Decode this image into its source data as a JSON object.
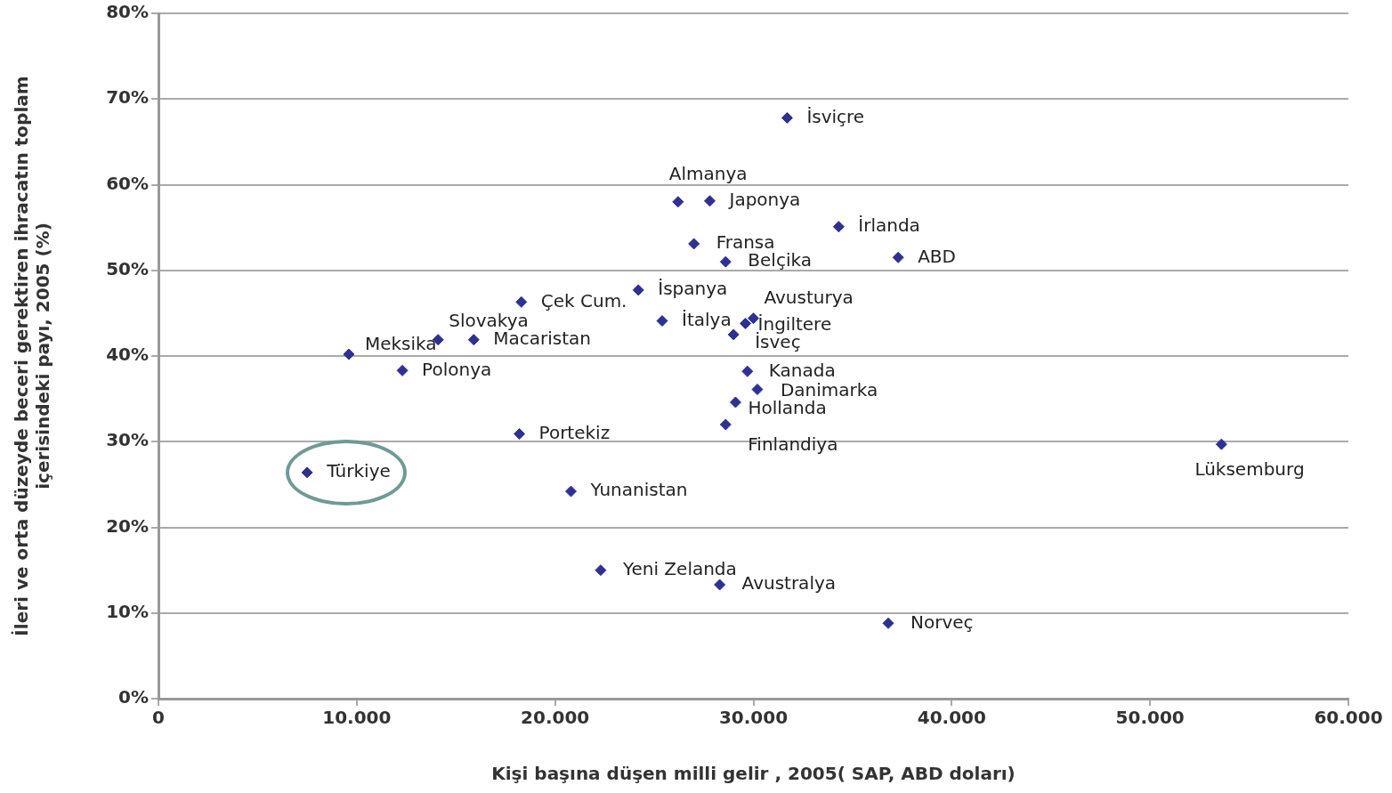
{
  "chart_data": {
    "type": "scatter",
    "xlabel": "Kişi başına düşen milli gelir , 2005( SAP, ABD doları)",
    "ylabel": "İleri ve orta düzeyde beceri gerektiren ihracatın toplam\niçerisindeki payı, 2005 (%)",
    "series": [
      {
        "color": "#2e3192",
        "x": [
          31700,
          26200,
          27800,
          34300,
          37300,
          27000,
          28600,
          24200,
          18300,
          14100,
          15900,
          9600,
          12300,
          25400,
          30000,
          29600,
          29000,
          29700,
          30200,
          29100,
          28600,
          18200,
          7500,
          20800,
          22300,
          28300,
          36800,
          53600
        ],
        "values": [
          67.8,
          58.0,
          58.1,
          55.1,
          51.5,
          53.1,
          51.0,
          47.7,
          46.3,
          41.9,
          41.9,
          40.2,
          38.3,
          44.1,
          44.4,
          43.8,
          42.5,
          38.2,
          36.1,
          34.6,
          32.0,
          30.9,
          26.4,
          24.2,
          15.0,
          13.3,
          8.8,
          29.7
        ]
      }
    ],
    "annotations": [
      {
        "text": "İsviçre",
        "x": 31700,
        "y": 67.8
      },
      {
        "text": "Almanya",
        "x": 26200,
        "y": 58.0
      },
      {
        "text": "Japonya",
        "x": 27800,
        "y": 58.1
      },
      {
        "text": "İrlanda",
        "x": 34300,
        "y": 55.1
      },
      {
        "text": "ABD",
        "x": 37300,
        "y": 51.5
      },
      {
        "text": "Fransa",
        "x": 27000,
        "y": 53.1
      },
      {
        "text": "Belçika",
        "x": 28600,
        "y": 51.0
      },
      {
        "text": "İspanya",
        "x": 24200,
        "y": 47.7
      },
      {
        "text": "Çek Cum.",
        "x": 18300,
        "y": 46.3
      },
      {
        "text": "Slovakya",
        "x": 14100,
        "y": 41.9
      },
      {
        "text": "Macaristan",
        "x": 15900,
        "y": 41.9
      },
      {
        "text": "Meksika",
        "x": 9600,
        "y": 40.2
      },
      {
        "text": "Polonya",
        "x": 12300,
        "y": 38.3
      },
      {
        "text": "İtalya",
        "x": 25400,
        "y": 44.1
      },
      {
        "text": "Avusturya",
        "x": 30000,
        "y": 44.4
      },
      {
        "text": "İngiltere",
        "x": 29600,
        "y": 43.8
      },
      {
        "text": "İsveç",
        "x": 29000,
        "y": 42.5
      },
      {
        "text": "Kanada",
        "x": 29700,
        "y": 38.2
      },
      {
        "text": "Danimarka",
        "x": 30200,
        "y": 36.1
      },
      {
        "text": "Hollanda",
        "x": 29100,
        "y": 34.6
      },
      {
        "text": "Finlandiya",
        "x": 28600,
        "y": 32.0
      },
      {
        "text": "Portekiz",
        "x": 18200,
        "y": 30.9
      },
      {
        "text": "Türkiye",
        "x": 7500,
        "y": 26.4
      },
      {
        "text": "Yunanistan",
        "x": 20800,
        "y": 24.2
      },
      {
        "text": "Yeni Zelanda",
        "x": 22300,
        "y": 15.0
      },
      {
        "text": "Avustralya",
        "x": 28300,
        "y": 13.3
      },
      {
        "text": "Norveç",
        "x": 36800,
        "y": 8.8
      },
      {
        "text": "Lüksemburg",
        "x": 53600,
        "y": 29.7
      }
    ],
    "xlim": [
      0,
      60000
    ],
    "xticks": [
      0,
      {
        "value": 10000,
        "label": "10.000"
      },
      {
        "value": 20000,
        "label": "20.000"
      },
      {
        "value": 30000,
        "label": "30.000"
      },
      {
        "value": 40000,
        "label": "40.000"
      },
      {
        "value": 50000,
        "label": "50.000"
      },
      {
        "value": 60000,
        "label": "60.000"
      }
    ],
    "ylim": [
      0,
      80
    ],
    "yticks": [
      {
        "value": 0,
        "label": "0%"
      },
      {
        "value": 10,
        "label": "10%"
      },
      {
        "value": 20,
        "label": "20%"
      },
      {
        "value": 30,
        "label": "30%"
      },
      {
        "value": 40,
        "label": "40%"
      },
      {
        "value": 50,
        "label": "50%"
      },
      {
        "value": 60,
        "label": "60%"
      },
      {
        "value": 70,
        "label": "70%"
      },
      {
        "value": 80,
        "label": "80%"
      }
    ],
    "grid": "y",
    "legend": false,
    "marker": "diamond"
  }
}
